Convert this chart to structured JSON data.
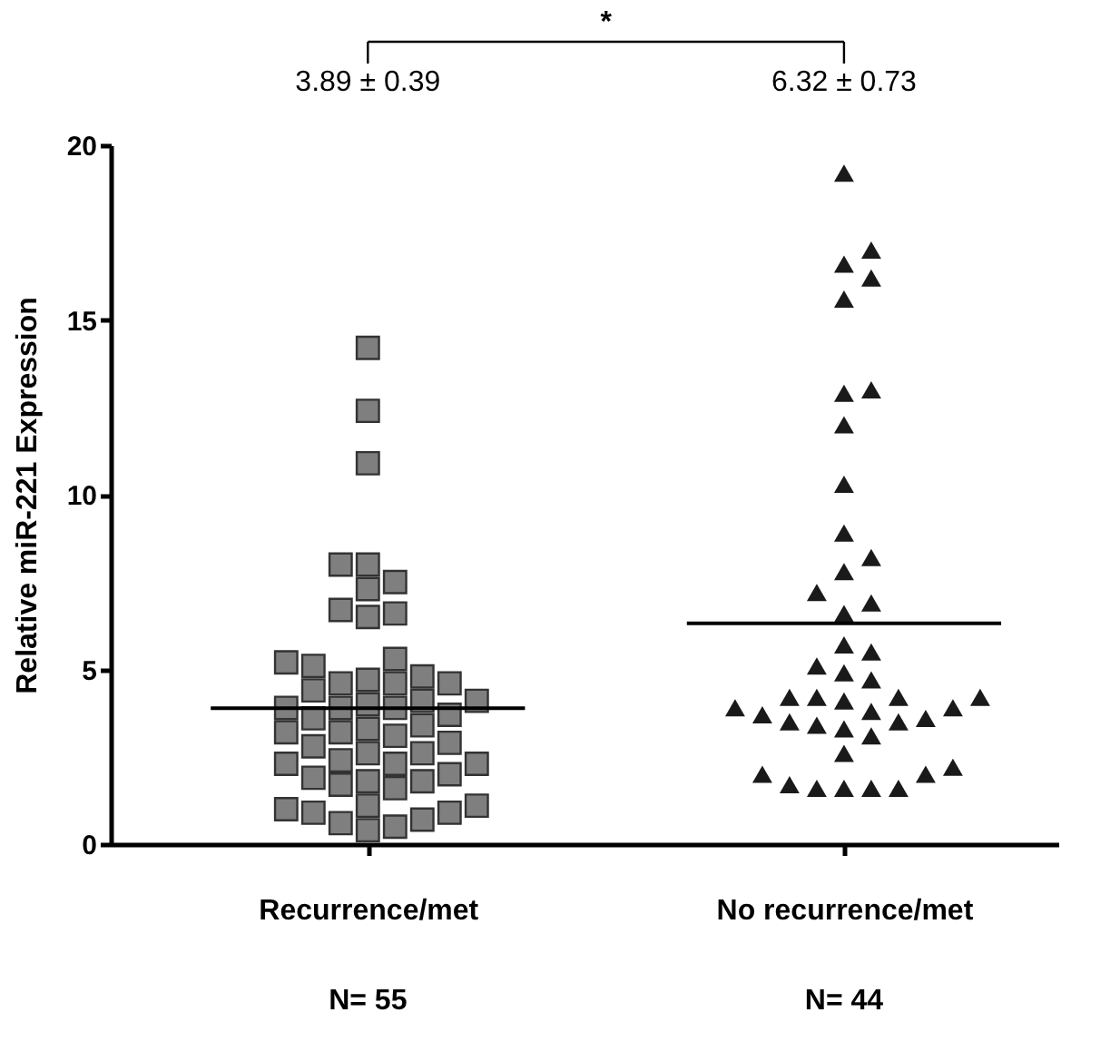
{
  "chart_data": {
    "type": "scatter",
    "ylabel": "Relative miR-221 Expression",
    "ylim": [
      0,
      20
    ],
    "yticks": [
      0,
      5,
      10,
      15,
      20
    ],
    "categories": [
      "Recurrence/met",
      "No recurrence/met"
    ],
    "grid": false,
    "ref_lines": [
      {
        "axis": "y",
        "value": 3.89,
        "color": "#000000"
      },
      {
        "axis": "y",
        "value": 6.32,
        "color": "#000000"
      }
    ],
    "annotations": [
      "*",
      "3.89 ± 0.39",
      "6.32 ± 0.73",
      "N= 55",
      "N= 44"
    ],
    "series": [
      {
        "marker": "square",
        "color": "#7f7f7f",
        "x": [
          "Recurrence/met",
          "Recurrence/met",
          "Recurrence/met",
          "Recurrence/met",
          "Recurrence/met",
          "Recurrence/met",
          "Recurrence/met",
          "Recurrence/met",
          "Recurrence/met",
          "Recurrence/met",
          "Recurrence/met",
          "Recurrence/met",
          "Recurrence/met",
          "Recurrence/met",
          "Recurrence/met",
          "Recurrence/met",
          "Recurrence/met",
          "Recurrence/met",
          "Recurrence/met",
          "Recurrence/met",
          "Recurrence/met",
          "Recurrence/met",
          "Recurrence/met",
          "Recurrence/met",
          "Recurrence/met",
          "Recurrence/met",
          "Recurrence/met",
          "Recurrence/met",
          "Recurrence/met",
          "Recurrence/met",
          "Recurrence/met",
          "Recurrence/met",
          "Recurrence/met",
          "Recurrence/met",
          "Recurrence/met",
          "Recurrence/met",
          "Recurrence/met",
          "Recurrence/met",
          "Recurrence/met",
          "Recurrence/met",
          "Recurrence/met",
          "Recurrence/met",
          "Recurrence/met",
          "Recurrence/met",
          "Recurrence/met",
          "Recurrence/met",
          "Recurrence/met",
          "Recurrence/met",
          "Recurrence/met",
          "Recurrence/met",
          "Recurrence/met",
          "Recurrence/met",
          "Recurrence/met",
          "Recurrence/met",
          "Recurrence/met"
        ],
        "values": [
          14.2,
          12.4,
          10.9,
          8.0,
          8.0,
          7.5,
          7.3,
          6.7,
          6.5,
          6.6,
          5.2,
          5.1,
          5.3,
          4.7,
          4.6,
          4.4,
          4.6,
          4.6,
          4.8,
          3.9,
          3.9,
          4.1,
          4.1,
          3.9,
          4.0,
          3.6,
          3.7,
          3.4,
          3.2,
          2.9,
          3.3,
          3.2,
          2.8,
          3.1,
          2.6,
          2.4,
          2.6,
          2.3,
          2.0,
          1.9,
          1.7,
          1.6,
          1.8,
          1.8,
          2.3,
          2.3,
          1.1,
          1.0,
          0.9,
          0.6,
          0.4,
          0.5,
          0.7,
          0.9,
          1.1
        ]
      },
      {
        "marker": "triangle",
        "color": "#1a1a1a",
        "x": [
          "No recurrence/met",
          "No recurrence/met",
          "No recurrence/met",
          "No recurrence/met",
          "No recurrence/met",
          "No recurrence/met",
          "No recurrence/met",
          "No recurrence/met",
          "No recurrence/met",
          "No recurrence/met",
          "No recurrence/met",
          "No recurrence/met",
          "No recurrence/met",
          "No recurrence/met",
          "No recurrence/met",
          "No recurrence/met",
          "No recurrence/met",
          "No recurrence/met",
          "No recurrence/met",
          "No recurrence/met",
          "No recurrence/met",
          "No recurrence/met",
          "No recurrence/met",
          "No recurrence/met",
          "No recurrence/met",
          "No recurrence/met",
          "No recurrence/met",
          "No recurrence/met",
          "No recurrence/met",
          "No recurrence/met",
          "No recurrence/met",
          "No recurrence/met",
          "No recurrence/met",
          "No recurrence/met",
          "No recurrence/met",
          "No recurrence/met",
          "No recurrence/met",
          "No recurrence/met",
          "No recurrence/met",
          "No recurrence/met",
          "No recurrence/met",
          "No recurrence/met",
          "No recurrence/met",
          "No recurrence/met"
        ],
        "values": [
          19.2,
          17.0,
          16.6,
          16.2,
          15.6,
          12.9,
          13.0,
          12.0,
          10.3,
          8.9,
          8.2,
          7.8,
          7.2,
          6.9,
          6.6,
          5.7,
          5.5,
          5.1,
          4.7,
          4.9,
          4.1,
          3.9,
          4.2,
          4.2,
          4.2,
          4.2,
          3.9,
          3.8,
          3.7,
          3.6,
          3.5,
          3.4,
          3.5,
          3.3,
          3.1,
          2.6,
          2.0,
          1.7,
          1.6,
          1.6,
          1.6,
          1.6,
          2.0,
          2.2
        ]
      }
    ]
  }
}
